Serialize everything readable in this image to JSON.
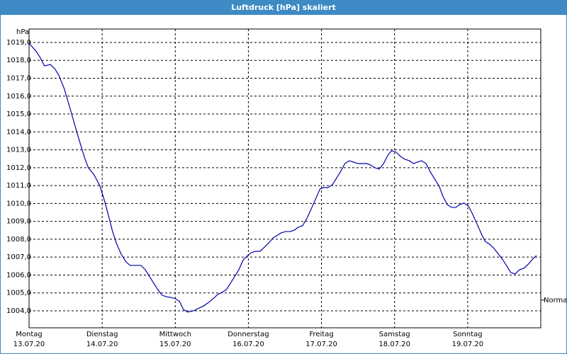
{
  "chart_data": {
    "type": "line",
    "title": "Luftdruck [hPa] skaliert",
    "y_unit_label": "hPa",
    "color": "#0000a8",
    "grid": true,
    "xlim": [
      0,
      7
    ],
    "ylim": [
      1003.05,
      1019.75
    ],
    "xticks": [
      {
        "value": 0,
        "label": "Montag\n13.07.20"
      },
      {
        "value": 1,
        "label": "Dienstag\n14.07.20"
      },
      {
        "value": 2,
        "label": "Mittwoch\n15.07.20"
      },
      {
        "value": 3,
        "label": "Donnerstag\n16.07.20"
      },
      {
        "value": 4,
        "label": "Freitag\n17.07.20"
      },
      {
        "value": 5,
        "label": "Samstag\n18.07.20"
      },
      {
        "value": 6,
        "label": "Sonntag\n19.07.20"
      }
    ],
    "yticks": [
      {
        "value": 1004,
        "label": "1004,0"
      },
      {
        "value": 1005,
        "label": "1005,0"
      },
      {
        "value": 1006,
        "label": "1006,0"
      },
      {
        "value": 1007,
        "label": "1007,0"
      },
      {
        "value": 1008,
        "label": "1008,0"
      },
      {
        "value": 1009,
        "label": "1009,0"
      },
      {
        "value": 1010,
        "label": "1010,0"
      },
      {
        "value": 1011,
        "label": "1011,0"
      },
      {
        "value": 1012,
        "label": "1012,0"
      },
      {
        "value": 1013,
        "label": "1013,0"
      },
      {
        "value": 1014,
        "label": "1014,0"
      },
      {
        "value": 1015,
        "label": "1015,0"
      },
      {
        "value": 1016,
        "label": "1016,0"
      },
      {
        "value": 1017,
        "label": "1017,0"
      },
      {
        "value": 1018,
        "label": "1018,0"
      },
      {
        "value": 1019,
        "label": "1019,0"
      }
    ],
    "reference": {
      "label": "Normal",
      "value": 1004.6
    },
    "x": [
      0.0,
      0.1,
      0.15,
      0.21,
      0.29,
      0.35,
      0.41,
      0.48,
      0.54,
      0.61,
      0.68,
      0.76,
      0.81,
      0.89,
      0.97,
      1.03,
      1.09,
      1.14,
      1.2,
      1.26,
      1.32,
      1.38,
      1.45,
      1.53,
      1.59,
      1.65,
      1.71,
      1.76,
      1.82,
      1.88,
      1.94,
      2.0,
      2.06,
      2.11,
      2.17,
      2.25,
      2.31,
      2.39,
      2.46,
      2.52,
      2.58,
      2.64,
      2.7,
      2.75,
      2.81,
      2.87,
      2.93,
      2.99,
      3.04,
      3.1,
      3.16,
      3.22,
      3.28,
      3.34,
      3.39,
      3.45,
      3.51,
      3.57,
      3.63,
      3.68,
      3.74,
      3.8,
      3.86,
      3.92,
      3.98,
      4.03,
      4.09,
      4.15,
      4.21,
      4.27,
      4.32,
      4.38,
      4.44,
      4.5,
      4.56,
      4.62,
      4.67,
      4.73,
      4.79,
      4.85,
      4.91,
      4.96,
      5.02,
      5.08,
      5.14,
      5.2,
      5.26,
      5.31,
      5.37,
      5.43,
      5.49,
      5.55,
      5.61,
      5.66,
      5.72,
      5.78,
      5.84,
      5.89,
      5.95,
      6.01,
      6.07,
      6.13,
      6.19,
      6.24,
      6.3,
      6.36,
      6.42,
      6.48,
      6.53,
      6.59,
      6.65,
      6.71,
      6.77,
      6.83,
      6.88,
      6.94
    ],
    "values": [
      1018.96,
      1018.49,
      1018.17,
      1017.69,
      1017.77,
      1017.54,
      1017.14,
      1016.43,
      1015.6,
      1014.61,
      1013.62,
      1012.55,
      1012.0,
      1011.6,
      1010.97,
      1010.18,
      1009.27,
      1008.47,
      1007.72,
      1007.17,
      1006.77,
      1006.54,
      1006.54,
      1006.54,
      1006.3,
      1005.9,
      1005.51,
      1005.19,
      1004.87,
      1004.79,
      1004.75,
      1004.68,
      1004.52,
      1004.08,
      1003.93,
      1004.0,
      1004.12,
      1004.28,
      1004.48,
      1004.68,
      1004.91,
      1005.03,
      1005.19,
      1005.51,
      1005.9,
      1006.3,
      1006.85,
      1007.09,
      1007.25,
      1007.33,
      1007.33,
      1007.56,
      1007.8,
      1008.08,
      1008.2,
      1008.36,
      1008.43,
      1008.43,
      1008.51,
      1008.67,
      1008.75,
      1009.15,
      1009.7,
      1010.25,
      1010.81,
      1010.89,
      1010.89,
      1011.05,
      1011.44,
      1011.84,
      1012.23,
      1012.39,
      1012.31,
      1012.23,
      1012.23,
      1012.23,
      1012.15,
      1012.0,
      1011.92,
      1012.23,
      1012.71,
      1012.95,
      1012.87,
      1012.63,
      1012.47,
      1012.39,
      1012.23,
      1012.31,
      1012.39,
      1012.23,
      1011.76,
      1011.36,
      1010.97,
      1010.41,
      1009.94,
      1009.78,
      1009.78,
      1009.94,
      1010.02,
      1009.86,
      1009.38,
      1008.83,
      1008.28,
      1007.88,
      1007.72,
      1007.49,
      1007.17,
      1006.85,
      1006.54,
      1006.14,
      1006.06,
      1006.3,
      1006.38,
      1006.61,
      1006.85,
      1007.09
    ]
  }
}
